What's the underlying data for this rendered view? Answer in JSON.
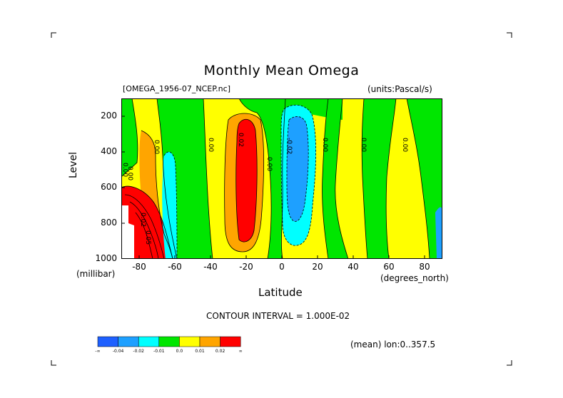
{
  "chart_data": {
    "type": "contour",
    "title": "Monthly Mean Omega",
    "subtitle_left": "[OMEGA_1956-07_NCEP.nc]",
    "subtitle_right": "(units:Pascal/s)",
    "xlabel": "Latitude",
    "x_unit_label": "(degrees_north)",
    "ylabel": "Level",
    "y_unit_label": "(millibar)",
    "xlim": [
      -90,
      90
    ],
    "ylim": [
      1000,
      100
    ],
    "x_ticks": [
      "-80",
      "-60",
      "-40",
      "-20",
      "0",
      "20",
      "40",
      "60",
      "80"
    ],
    "x_tick_values": [
      -80,
      -60,
      -40,
      -20,
      0,
      20,
      40,
      60,
      80
    ],
    "y_ticks": [
      "200",
      "400",
      "600",
      "800",
      "1000"
    ],
    "y_tick_values": [
      200,
      400,
      600,
      800,
      1000
    ],
    "contour_interval_text": "CONTOUR INTERVAL = 1.000E-02",
    "mean_text": "(mean) lon:0..357.5",
    "contour_labels": [
      "0.00",
      "0.00",
      "0.00",
      "0.00",
      "-0.02",
      "0.00",
      "0.00",
      "0.00",
      "0.00",
      "0.02",
      "0.02",
      "0.05"
    ],
    "colorbar": {
      "labels": [
        "-∞",
        "-0.04",
        "-0.02",
        "-0.01",
        "0.0",
        "0.01",
        "0.02",
        "∞"
      ],
      "colors": [
        "#1e60ff",
        "#1ea0ff",
        "#00ffff",
        "#00e600",
        "#ffff00",
        "#ffa500",
        "#ff0000"
      ]
    }
  }
}
